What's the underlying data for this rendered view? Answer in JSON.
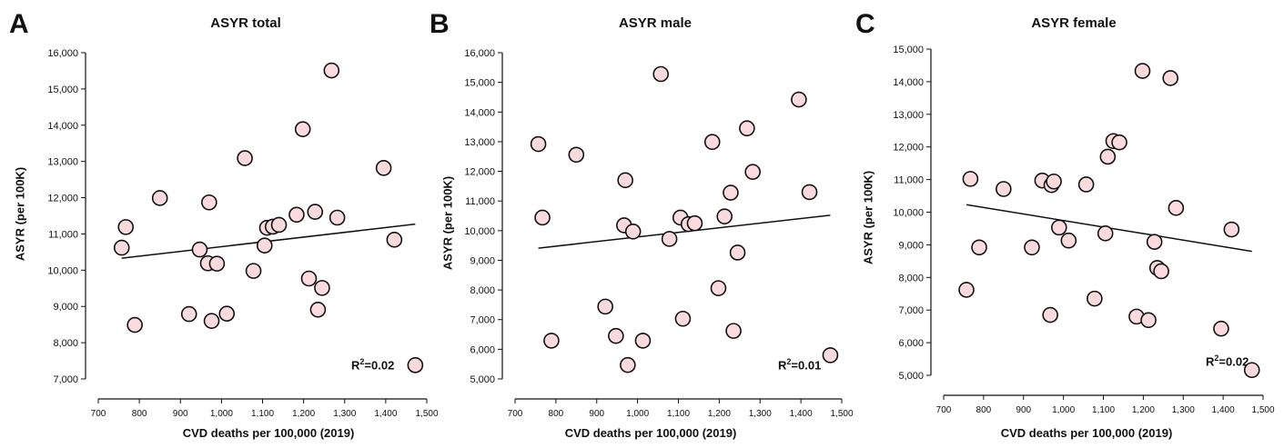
{
  "panels": [
    {
      "letter": "A",
      "r2_label": "R",
      "r2_sup": "2",
      "r2_value": "=0.02"
    },
    {
      "letter": "B",
      "r2_label": "R",
      "r2_sup": "2",
      "r2_value": "=0.01"
    },
    {
      "letter": "C",
      "r2_label": "R",
      "r2_sup": "2",
      "r2_value": "=0.02"
    }
  ],
  "colors": {
    "marker_fill": "#fadadd",
    "marker_stroke": "#111111",
    "line": "#111111"
  },
  "chart_data": [
    {
      "type": "scatter",
      "title": "ASYR total",
      "xlabel": "CVD deaths per 100,000 (2019)",
      "ylabel": "ASYR (per 100K)",
      "xlim": [
        700,
        1500
      ],
      "ylim": [
        7000,
        16000
      ],
      "xticks": [
        700,
        800,
        900,
        1000,
        1100,
        1200,
        1300,
        1400,
        1500
      ],
      "xtick_labels": [
        "700",
        "800",
        "900",
        "1,000",
        "1,100",
        "1,200",
        "1,300",
        "1,400",
        "1,500"
      ],
      "yticks": [
        7000,
        8000,
        9000,
        10000,
        11000,
        12000,
        13000,
        14000,
        15000,
        16000
      ],
      "ytick_labels": [
        "7,000",
        "8,000",
        "9,000",
        "10,000",
        "11,000",
        "12,000",
        "13,000",
        "14,000",
        "15,000",
        "16,000"
      ],
      "x": [
        757,
        767,
        789,
        850,
        921,
        947,
        967,
        970,
        976,
        989,
        1013,
        1057,
        1078,
        1105,
        1111,
        1125,
        1140,
        1183,
        1198,
        1213,
        1228,
        1235,
        1245,
        1268,
        1282,
        1395,
        1421,
        1472
      ],
      "y": [
        10620,
        11190,
        8490,
        11990,
        8790,
        10570,
        10190,
        11870,
        8600,
        10180,
        8800,
        13090,
        9980,
        10680,
        11170,
        11200,
        11250,
        11530,
        13890,
        9770,
        11610,
        8910,
        9510,
        15510,
        11450,
        12820,
        10840,
        7380
      ],
      "trend": {
        "x": [
          757,
          1472
        ],
        "y": [
          10330,
          11270
        ]
      },
      "r2": "R2=0.02"
    },
    {
      "type": "scatter",
      "title": "ASYR male",
      "xlabel": "CVD deaths per 100,000 (2019)",
      "ylabel": "ASYR (per 100K)",
      "xlim": [
        700,
        1500
      ],
      "ylim": [
        5000,
        16000
      ],
      "xticks": [
        700,
        800,
        900,
        1000,
        1100,
        1200,
        1300,
        1400,
        1500
      ],
      "xtick_labels": [
        "700",
        "800",
        "900",
        "1,000",
        "1,100",
        "1,200",
        "1,300",
        "1,400",
        "1,500"
      ],
      "yticks": [
        5000,
        6000,
        7000,
        8000,
        9000,
        10000,
        11000,
        12000,
        13000,
        14000,
        15000,
        16000
      ],
      "ytick_labels": [
        "5,000",
        "6,000",
        "7,000",
        "8,000",
        "9,000",
        "10,000",
        "11,000",
        "12,000",
        "13,000",
        "14,000",
        "15,000",
        "16,000"
      ],
      "x": [
        757,
        767,
        789,
        850,
        921,
        947,
        967,
        970,
        976,
        989,
        1013,
        1057,
        1078,
        1105,
        1111,
        1125,
        1140,
        1183,
        1198,
        1213,
        1228,
        1235,
        1245,
        1268,
        1282,
        1395,
        1421,
        1472
      ],
      "y": [
        12920,
        10440,
        6290,
        12560,
        7440,
        6450,
        10180,
        11700,
        5470,
        9970,
        6290,
        15280,
        9720,
        10440,
        7030,
        10220,
        10250,
        12990,
        8060,
        10480,
        11280,
        6620,
        9260,
        13450,
        11980,
        14420,
        11300,
        5800
      ],
      "trend": {
        "x": [
          757,
          1472
        ],
        "y": [
          9410,
          10520
        ]
      },
      "r2": "R2=0.01"
    },
    {
      "type": "scatter",
      "title": "ASYR female",
      "xlabel": "CVD deaths per 100,000 (2019)",
      "ylabel": "ASYR (per 100K)",
      "xlim": [
        700,
        1500
      ],
      "ylim": [
        5000,
        15000
      ],
      "xticks": [
        700,
        800,
        900,
        1000,
        1100,
        1200,
        1300,
        1400,
        1500
      ],
      "xtick_labels": [
        "700",
        "800",
        "900",
        "1,000",
        "1,100",
        "1,200",
        "1,300",
        "1,400",
        "1,500"
      ],
      "yticks": [
        5000,
        6000,
        7000,
        8000,
        9000,
        10000,
        11000,
        12000,
        13000,
        14000,
        15000
      ],
      "ytick_labels": [
        "5,000",
        "6,000",
        "7,000",
        "8,000",
        "9,000",
        "10,000",
        "11,000",
        "12,000",
        "13,000",
        "14,000",
        "15,000"
      ],
      "x": [
        757,
        767,
        789,
        850,
        921,
        947,
        967,
        970,
        976,
        989,
        1013,
        1057,
        1078,
        1105,
        1111,
        1125,
        1140,
        1183,
        1198,
        1213,
        1228,
        1235,
        1245,
        1268,
        1282,
        1395,
        1421,
        1472
      ],
      "y": [
        7620,
        11020,
        8920,
        10710,
        8920,
        10970,
        6850,
        10830,
        10940,
        9530,
        9130,
        10850,
        7350,
        9350,
        11700,
        12180,
        12140,
        6800,
        14330,
        6690,
        9090,
        8290,
        8190,
        14110,
        10130,
        6430,
        9470,
        5160
      ],
      "trend": {
        "x": [
          757,
          1472
        ],
        "y": [
          10230,
          8800
        ]
      },
      "r2": "R2=0.02"
    }
  ]
}
